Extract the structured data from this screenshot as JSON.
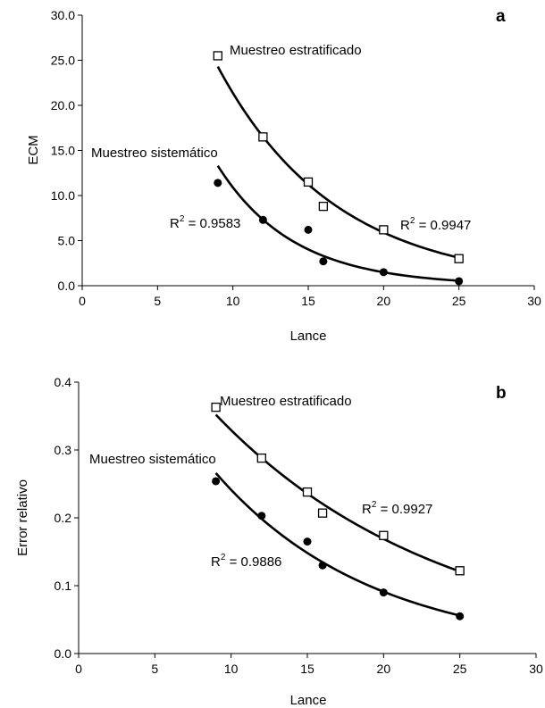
{
  "chart_data": [
    {
      "type": "scatter",
      "panel_label": "a",
      "xlabel": "Lance",
      "ylabel": "ECM",
      "xlim": [
        0,
        30
      ],
      "ylim": [
        0,
        30
      ],
      "xticks": [
        "0",
        "5",
        "10",
        "15",
        "20",
        "25",
        "30"
      ],
      "yticks": [
        "0.0",
        "5.0",
        "10.0",
        "15.0",
        "20.0",
        "25.0",
        "30.0"
      ],
      "grid": false,
      "legend": "none",
      "series": [
        {
          "name": "Muestreo estratificado",
          "marker": "open-square",
          "x": [
            9,
            12,
            15,
            16,
            20,
            25
          ],
          "y": [
            25.5,
            16.5,
            11.5,
            8.8,
            6.2,
            3.0
          ],
          "fit": {
            "type": "exponential",
            "from": 9,
            "to": 25,
            "y_start": 24.3,
            "y_end": 3.1
          },
          "r2_label": "R",
          "r2_sup": "2",
          "r2_value": " = 0.9947"
        },
        {
          "name": "Muestreo sistemático",
          "marker": "filled-circle",
          "x": [
            9,
            12,
            15,
            16,
            20,
            25
          ],
          "y": [
            11.4,
            7.3,
            6.2,
            2.7,
            1.5,
            0.5
          ],
          "fit": {
            "type": "exponential",
            "from": 9,
            "to": 25,
            "y_start": 13.3,
            "y_end": 0.55
          },
          "r2_label": "R",
          "r2_sup": "2",
          "r2_value": " = 0.9583"
        }
      ]
    },
    {
      "type": "scatter",
      "panel_label": "b",
      "xlabel": "Lance",
      "ylabel": "Error relativo",
      "xlim": [
        0,
        30
      ],
      "ylim": [
        0,
        0.4
      ],
      "xticks": [
        "0",
        "5",
        "10",
        "15",
        "20",
        "25",
        "30"
      ],
      "yticks": [
        "0.0",
        "0.1",
        "0.2",
        "0.3",
        "0.4"
      ],
      "grid": false,
      "legend": "none",
      "series": [
        {
          "name": "Muestreo estratificado",
          "marker": "open-square",
          "x": [
            9,
            12,
            15,
            16,
            20,
            25
          ],
          "y": [
            0.363,
            0.288,
            0.238,
            0.207,
            0.174,
            0.122
          ],
          "fit": {
            "type": "exponential",
            "from": 9,
            "to": 25,
            "y_start": 0.352,
            "y_end": 0.121
          },
          "r2_label": "R",
          "r2_sup": "2",
          "r2_value": " = 0.9927"
        },
        {
          "name": "Muestreo sistemático",
          "marker": "filled-circle",
          "x": [
            9,
            12,
            15,
            16,
            20,
            25
          ],
          "y": [
            0.254,
            0.203,
            0.165,
            0.13,
            0.09,
            0.055
          ],
          "fit": {
            "type": "exponential",
            "from": 9,
            "to": 25,
            "y_start": 0.266,
            "y_end": 0.056
          },
          "r2_label": "R",
          "r2_sup": "2",
          "r2_value": " = 0.9886"
        }
      ]
    }
  ]
}
